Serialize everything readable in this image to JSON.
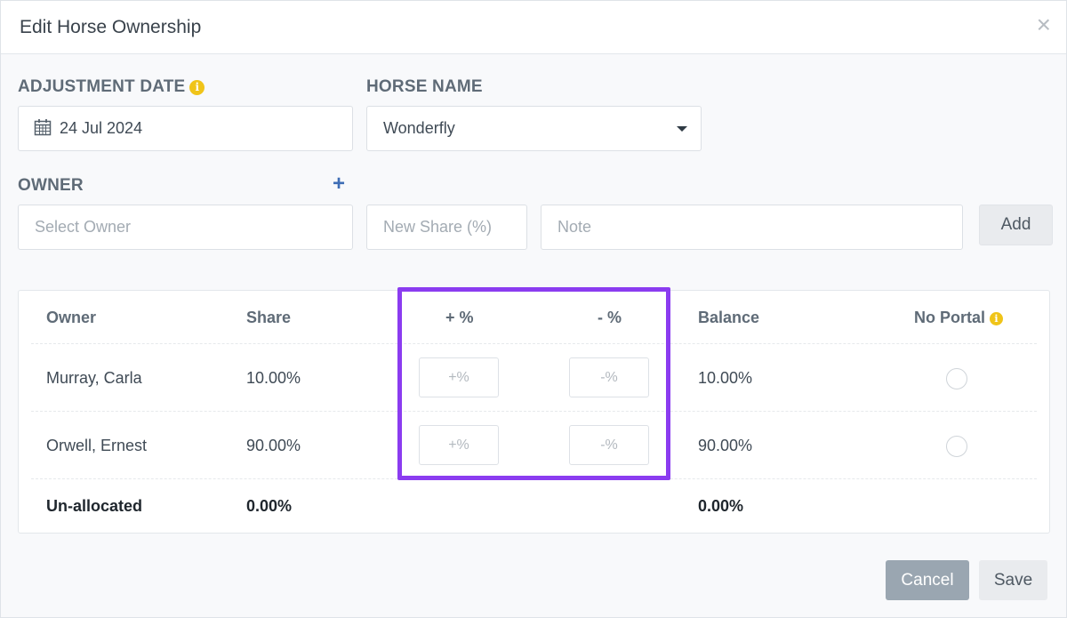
{
  "dialog": {
    "title": "Edit Horse Ownership",
    "close_glyph": "×"
  },
  "form": {
    "adjustment_date_label": "ADJUSTMENT DATE",
    "adjustment_date_value": "24 Jul 2024",
    "horse_name_label": "HORSE NAME",
    "horse_name_value": "Wonderfly",
    "owner_label": "OWNER",
    "owner_placeholder": "Select Owner",
    "new_share_placeholder": "New Share (%)",
    "note_placeholder": "Note",
    "add_button": "Add",
    "add_owner_glyph": "+",
    "info_glyph": "i"
  },
  "table": {
    "headers": {
      "owner": "Owner",
      "share": "Share",
      "plus": "+ %",
      "minus": "- %",
      "balance": "Balance",
      "no_portal": "No Portal"
    },
    "rows": [
      {
        "owner": "Murray, Carla",
        "share": "10.00%",
        "plus_placeholder": "+%",
        "minus_placeholder": "-%",
        "balance": "10.00%"
      },
      {
        "owner": "Orwell, Ernest",
        "share": "90.00%",
        "plus_placeholder": "+%",
        "minus_placeholder": "-%",
        "balance": "90.00%"
      }
    ],
    "footer": {
      "label": "Un-allocated",
      "share": "0.00%",
      "balance": "0.00%"
    }
  },
  "actions": {
    "cancel": "Cancel",
    "save": "Save"
  },
  "colors": {
    "highlight": "#8b3cf0",
    "info": "#f0c419",
    "plus_icon": "#3e6db5"
  }
}
